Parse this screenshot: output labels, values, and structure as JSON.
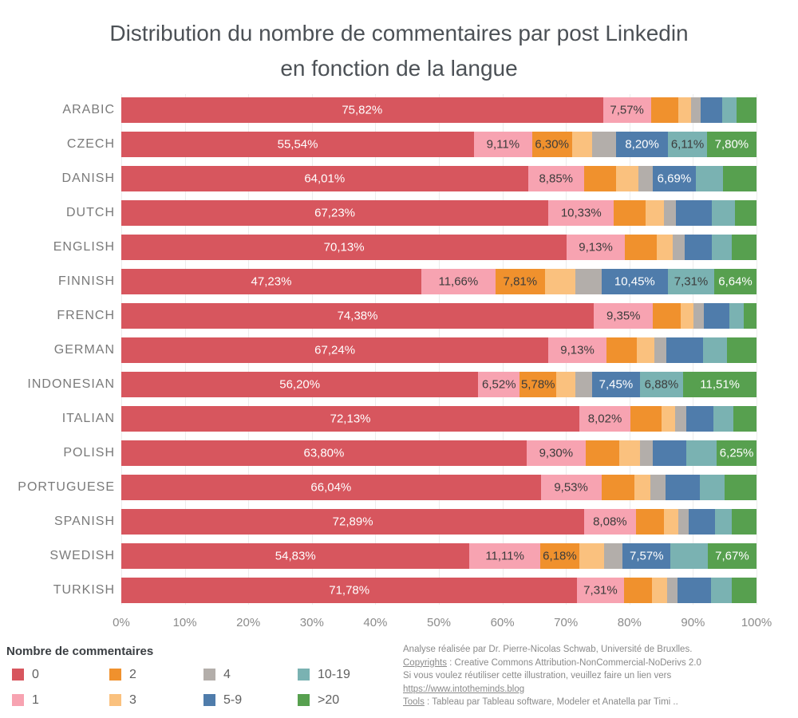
{
  "title": {
    "line1": "Distribution du nombre de commentaires par post Linkedin",
    "line2": "en fonction de la langue"
  },
  "chart_data": {
    "type": "bar",
    "stacked": true,
    "orientation": "horizontal",
    "unit": "percent",
    "xlim": [
      0,
      100
    ],
    "x_ticks": [
      "0%",
      "10%",
      "20%",
      "30%",
      "40%",
      "50%",
      "60%",
      "70%",
      "80%",
      "90%",
      "100%"
    ],
    "grid": true,
    "categories": [
      "0",
      "1",
      "2",
      "3",
      "4",
      "5-9",
      "10-19",
      ">20"
    ],
    "colors": [
      "#d7565e",
      "#f7a3b1",
      "#f0912d",
      "#fac17e",
      "#b3aeaa",
      "#4f7cab",
      "#7ab2b2",
      "#57a04f"
    ],
    "label_light_categories": [
      "0",
      "5-9",
      ">20"
    ],
    "languages": [
      {
        "name": "ARABIC",
        "values": [
          75.82,
          7.57,
          4.3,
          2.0,
          1.5,
          3.45,
          2.25,
          3.11
        ],
        "labels": [
          "75,82%",
          "7,57%",
          null,
          null,
          null,
          null,
          null,
          null
        ]
      },
      {
        "name": "CZECH",
        "values": [
          55.54,
          9.11,
          6.3,
          3.2,
          3.74,
          8.2,
          6.11,
          7.8
        ],
        "labels": [
          "55,54%",
          "9,11%",
          "6,30%",
          null,
          null,
          "8,20%",
          "6,11%",
          "7,80%"
        ]
      },
      {
        "name": "DANISH",
        "values": [
          64.01,
          8.85,
          5.0,
          3.6,
          2.25,
          6.69,
          4.3,
          5.3
        ],
        "labels": [
          "64,01%",
          "8,85%",
          null,
          null,
          null,
          "6,69%",
          null,
          null
        ]
      },
      {
        "name": "DUTCH",
        "values": [
          67.23,
          10.33,
          5.0,
          2.9,
          1.9,
          5.6,
          3.7,
          3.34
        ],
        "labels": [
          "67,23%",
          "10,33%",
          null,
          null,
          null,
          null,
          null,
          null
        ]
      },
      {
        "name": "ENGLISH",
        "values": [
          70.13,
          9.13,
          5.0,
          2.5,
          1.9,
          4.3,
          3.1,
          3.94
        ],
        "labels": [
          "70,13%",
          "9,13%",
          null,
          null,
          null,
          null,
          null,
          null
        ]
      },
      {
        "name": "FINNISH",
        "values": [
          47.23,
          11.66,
          7.81,
          4.8,
          4.1,
          10.45,
          7.31,
          6.64
        ],
        "labels": [
          "47,23%",
          "11,66%",
          "7,81%",
          null,
          null,
          "10,45%",
          "7,31%",
          "6,64%"
        ]
      },
      {
        "name": "FRENCH",
        "values": [
          74.38,
          9.35,
          4.3,
          2.1,
          1.6,
          3.95,
          2.32,
          2.0
        ],
        "labels": [
          "74,38%",
          "9,35%",
          null,
          null,
          null,
          null,
          null,
          null
        ]
      },
      {
        "name": "GERMAN",
        "values": [
          67.24,
          9.13,
          4.8,
          2.7,
          1.9,
          5.8,
          3.8,
          4.63
        ],
        "labels": [
          "67,24%",
          "9,13%",
          null,
          null,
          null,
          null,
          null,
          null
        ]
      },
      {
        "name": "INDONESIAN",
        "values": [
          56.2,
          6.52,
          5.78,
          3.0,
          2.66,
          7.45,
          6.88,
          11.51
        ],
        "labels": [
          "56,20%",
          "6,52%",
          "5,78%",
          null,
          null,
          "7,45%",
          "6,88%",
          "11,51%"
        ]
      },
      {
        "name": "ITALIAN",
        "values": [
          72.13,
          8.02,
          4.9,
          2.2,
          1.7,
          4.3,
          3.15,
          3.6
        ],
        "labels": [
          "72,13%",
          "8,02%",
          null,
          null,
          null,
          null,
          null,
          null
        ]
      },
      {
        "name": "POLISH",
        "values": [
          63.8,
          9.3,
          5.3,
          3.3,
          2.0,
          5.3,
          4.75,
          6.25
        ],
        "labels": [
          "63,80%",
          "9,30%",
          null,
          null,
          null,
          null,
          null,
          "6,25%"
        ]
      },
      {
        "name": "PORTUGUESE",
        "values": [
          66.04,
          9.53,
          5.2,
          2.5,
          2.4,
          5.4,
          3.93,
          5.0
        ],
        "labels": [
          "66,04%",
          "9,53%",
          null,
          null,
          null,
          null,
          null,
          null
        ]
      },
      {
        "name": "SPANISH",
        "values": [
          72.89,
          8.08,
          4.5,
          2.2,
          1.7,
          4.1,
          2.6,
          3.93
        ],
        "labels": [
          "72,89%",
          "8,08%",
          null,
          null,
          null,
          null,
          null,
          null
        ]
      },
      {
        "name": "SWEDISH",
        "values": [
          54.83,
          11.11,
          6.18,
          3.9,
          2.9,
          7.57,
          5.84,
          7.67
        ],
        "labels": [
          "54,83%",
          "11,11%",
          "6,18%",
          null,
          null,
          "7,57%",
          null,
          "7,67%"
        ]
      },
      {
        "name": "TURKISH",
        "values": [
          71.78,
          7.31,
          4.5,
          2.3,
          1.7,
          5.2,
          3.3,
          3.91
        ],
        "labels": [
          "71,78%",
          "7,31%",
          null,
          null,
          null,
          null,
          null,
          null
        ]
      }
    ]
  },
  "legend": {
    "title": "Nombre de commentaires",
    "items": [
      {
        "label": "0",
        "color": "#d7565e"
      },
      {
        "label": "1",
        "color": "#f7a3b1"
      },
      {
        "label": "2",
        "color": "#f0912d"
      },
      {
        "label": "3",
        "color": "#fac17e"
      },
      {
        "label": "4",
        "color": "#b3aeaa"
      },
      {
        "label": "5-9",
        "color": "#4f7cab"
      },
      {
        "label": "10-19",
        "color": "#7ab2b2"
      },
      {
        "label": ">20",
        "color": "#57a04f"
      }
    ]
  },
  "caption": {
    "lines": [
      [
        {
          "t": "Analyse réalisée par Dr. Pierre-Nicolas Schwab, Université de Bruxlles."
        }
      ],
      [
        {
          "t": "Copyrights",
          "u": true
        },
        {
          "t": " : Creative Commons Attribution-NonCommercial-NoDerivs 2.0"
        }
      ],
      [
        {
          "t": "Si vous voulez réutiliser cette illustration, veuillez faire un lien vers"
        }
      ],
      [
        {
          "t": "https://www.intotheminds.blog",
          "u": true,
          "link": true
        }
      ],
      [
        {
          "t": "Tools",
          "u": true
        },
        {
          "t": " : Tableau par Tableau software, Modeler et Anatella par Timi .."
        }
      ]
    ]
  },
  "colors": {
    "label_light": "#ffffff",
    "label_dark": "#3c3c3c",
    "title_text": "#4c5156",
    "axis_text": "#8b8b8b",
    "y_label_text": "#7a7a7a",
    "gridline": "#ececec"
  }
}
